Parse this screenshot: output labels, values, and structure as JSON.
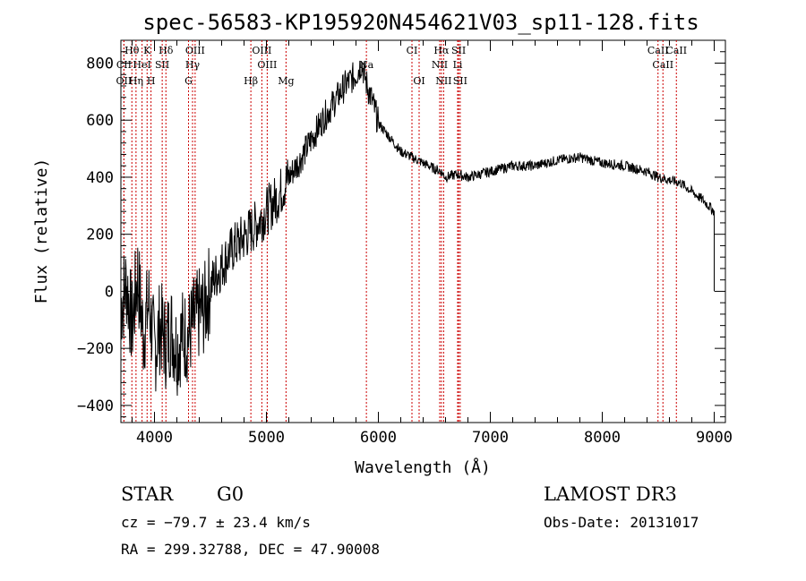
{
  "chart_data": {
    "type": "line",
    "title": "spec-56583-KP195920N454621V03_sp11-128.fits",
    "xlabel": "Wavelength (Å)",
    "ylabel": "Flux (relative)",
    "xlim": [
      3700,
      9100
    ],
    "ylim": [
      -460,
      880
    ],
    "x_ticks": [
      4000,
      5000,
      6000,
      7000,
      8000,
      9000
    ],
    "y_ticks": [
      -400,
      -200,
      0,
      200,
      400,
      600,
      800
    ],
    "series": [
      {
        "name": "flux",
        "x": [
          3700,
          3750,
          3800,
          3850,
          3900,
          3950,
          4000,
          4050,
          4100,
          4150,
          4200,
          4250,
          4300,
          4350,
          4400,
          4450,
          4500,
          4600,
          4700,
          4800,
          4900,
          5000,
          5100,
          5200,
          5300,
          5400,
          5500,
          5600,
          5700,
          5800,
          5850,
          5900,
          5950,
          6000,
          6100,
          6200,
          6300,
          6400,
          6500,
          6560,
          6600,
          6700,
          6800,
          6900,
          7000,
          7200,
          7400,
          7600,
          7800,
          8000,
          8200,
          8400,
          8500,
          8600,
          8700,
          8800,
          8900,
          9000
        ],
        "y": [
          -50,
          30,
          -120,
          60,
          -150,
          -40,
          -210,
          -120,
          -180,
          -130,
          -200,
          -150,
          -160,
          -110,
          -80,
          -60,
          20,
          90,
          150,
          190,
          230,
          280,
          330,
          400,
          460,
          530,
          600,
          660,
          720,
          760,
          800,
          720,
          660,
          590,
          540,
          490,
          470,
          450,
          430,
          420,
          400,
          410,
          400,
          410,
          420,
          440,
          440,
          460,
          470,
          450,
          440,
          420,
          400,
          390,
          380,
          350,
          320,
          280
        ]
      }
    ],
    "spectral_lines": [
      {
        "label": "Hθ",
        "x": 3798
      },
      {
        "label": "K",
        "x": 3934
      },
      {
        "label": "Hδ",
        "x": 4102
      },
      {
        "label": "OIII",
        "x": 4363
      },
      {
        "label": "OIII",
        "x": 4959
      },
      {
        "label": "CI",
        "x": 6300
      },
      {
        "label": "Hα",
        "x": 6563
      },
      {
        "label": "SII",
        "x": 6717
      },
      {
        "label": "CaII",
        "x": 8498
      },
      {
        "label": "CII",
        "x": 3727
      },
      {
        "label": "HeI",
        "x": 3889
      },
      {
        "label": "SII",
        "x": 4069
      },
      {
        "label": "Hγ",
        "x": 4340
      },
      {
        "label": "OIII",
        "x": 5007
      },
      {
        "label": "Na",
        "x": 5893
      },
      {
        "label": "NII",
        "x": 6548
      },
      {
        "label": "Li",
        "x": 6708
      },
      {
        "label": "CaII",
        "x": 8542
      },
      {
        "label": "OII",
        "x": 3727
      },
      {
        "label": "Hη",
        "x": 3835
      },
      {
        "label": "H",
        "x": 3969
      },
      {
        "label": "G",
        "x": 4304
      },
      {
        "label": "Hβ",
        "x": 4861
      },
      {
        "label": "Mg",
        "x": 5175
      },
      {
        "label": "OI",
        "x": 6364
      },
      {
        "label": "NII",
        "x": 6583
      },
      {
        "label": "SII",
        "x": 6731
      },
      {
        "label": "CaII",
        "x": 8662
      }
    ]
  },
  "footer": {
    "class": "STAR",
    "subclass": "G0",
    "survey": "LAMOST DR3",
    "cz": "cz = −79.7 ± 23.4 km/s",
    "obs_date": "Obs-Date: 20131017",
    "coords": "RA = 299.32788, DEC =  47.90008"
  }
}
